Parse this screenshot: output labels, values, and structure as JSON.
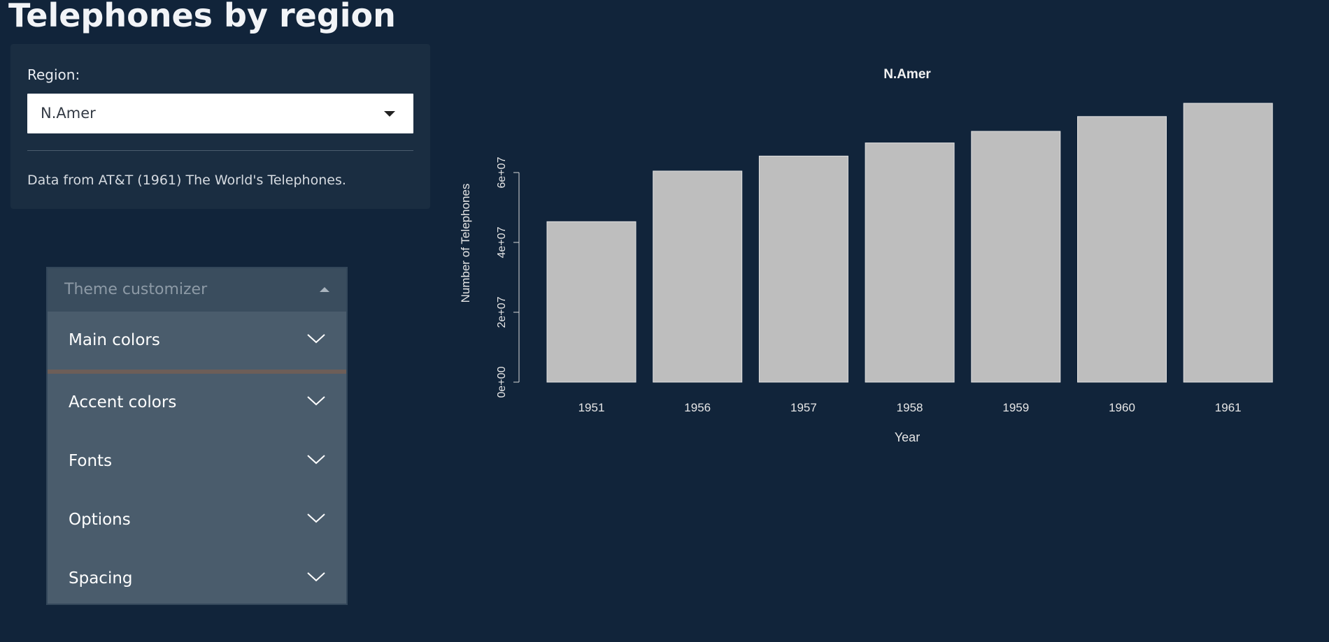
{
  "page": {
    "title": "Telephones by region"
  },
  "sidebar": {
    "region_label": "Region:",
    "region_selected": "N.Amer",
    "source_text": "Data from AT&T (1961) The World's Telephones."
  },
  "customizer": {
    "title": "Theme customizer",
    "sections": [
      {
        "label": "Main colors"
      },
      {
        "label": "Accent colors"
      },
      {
        "label": "Fonts"
      },
      {
        "label": "Options"
      },
      {
        "label": "Spacing"
      }
    ]
  },
  "colors": {
    "background": "#11243a",
    "panel": "#1a2d41",
    "bar_fill": "#bebebe",
    "customizer_bg": "#4a5c6c",
    "accent_separator": "#6d5e58"
  },
  "chart_data": {
    "type": "bar",
    "title": "N.Amer",
    "xlabel": "Year",
    "ylabel": "Number of Telephones",
    "categories": [
      "1951",
      "1956",
      "1957",
      "1958",
      "1959",
      "1960",
      "1961"
    ],
    "values": [
      45939000,
      60423000,
      64721000,
      68484000,
      71799000,
      76036000,
      79831000
    ],
    "ylim": [
      0,
      80000000
    ],
    "y_ticks": [
      0,
      20000000,
      40000000,
      60000000
    ],
    "y_tick_labels": [
      "0e+00",
      "2e+07",
      "4e+07",
      "6e+07"
    ],
    "grid": false
  }
}
